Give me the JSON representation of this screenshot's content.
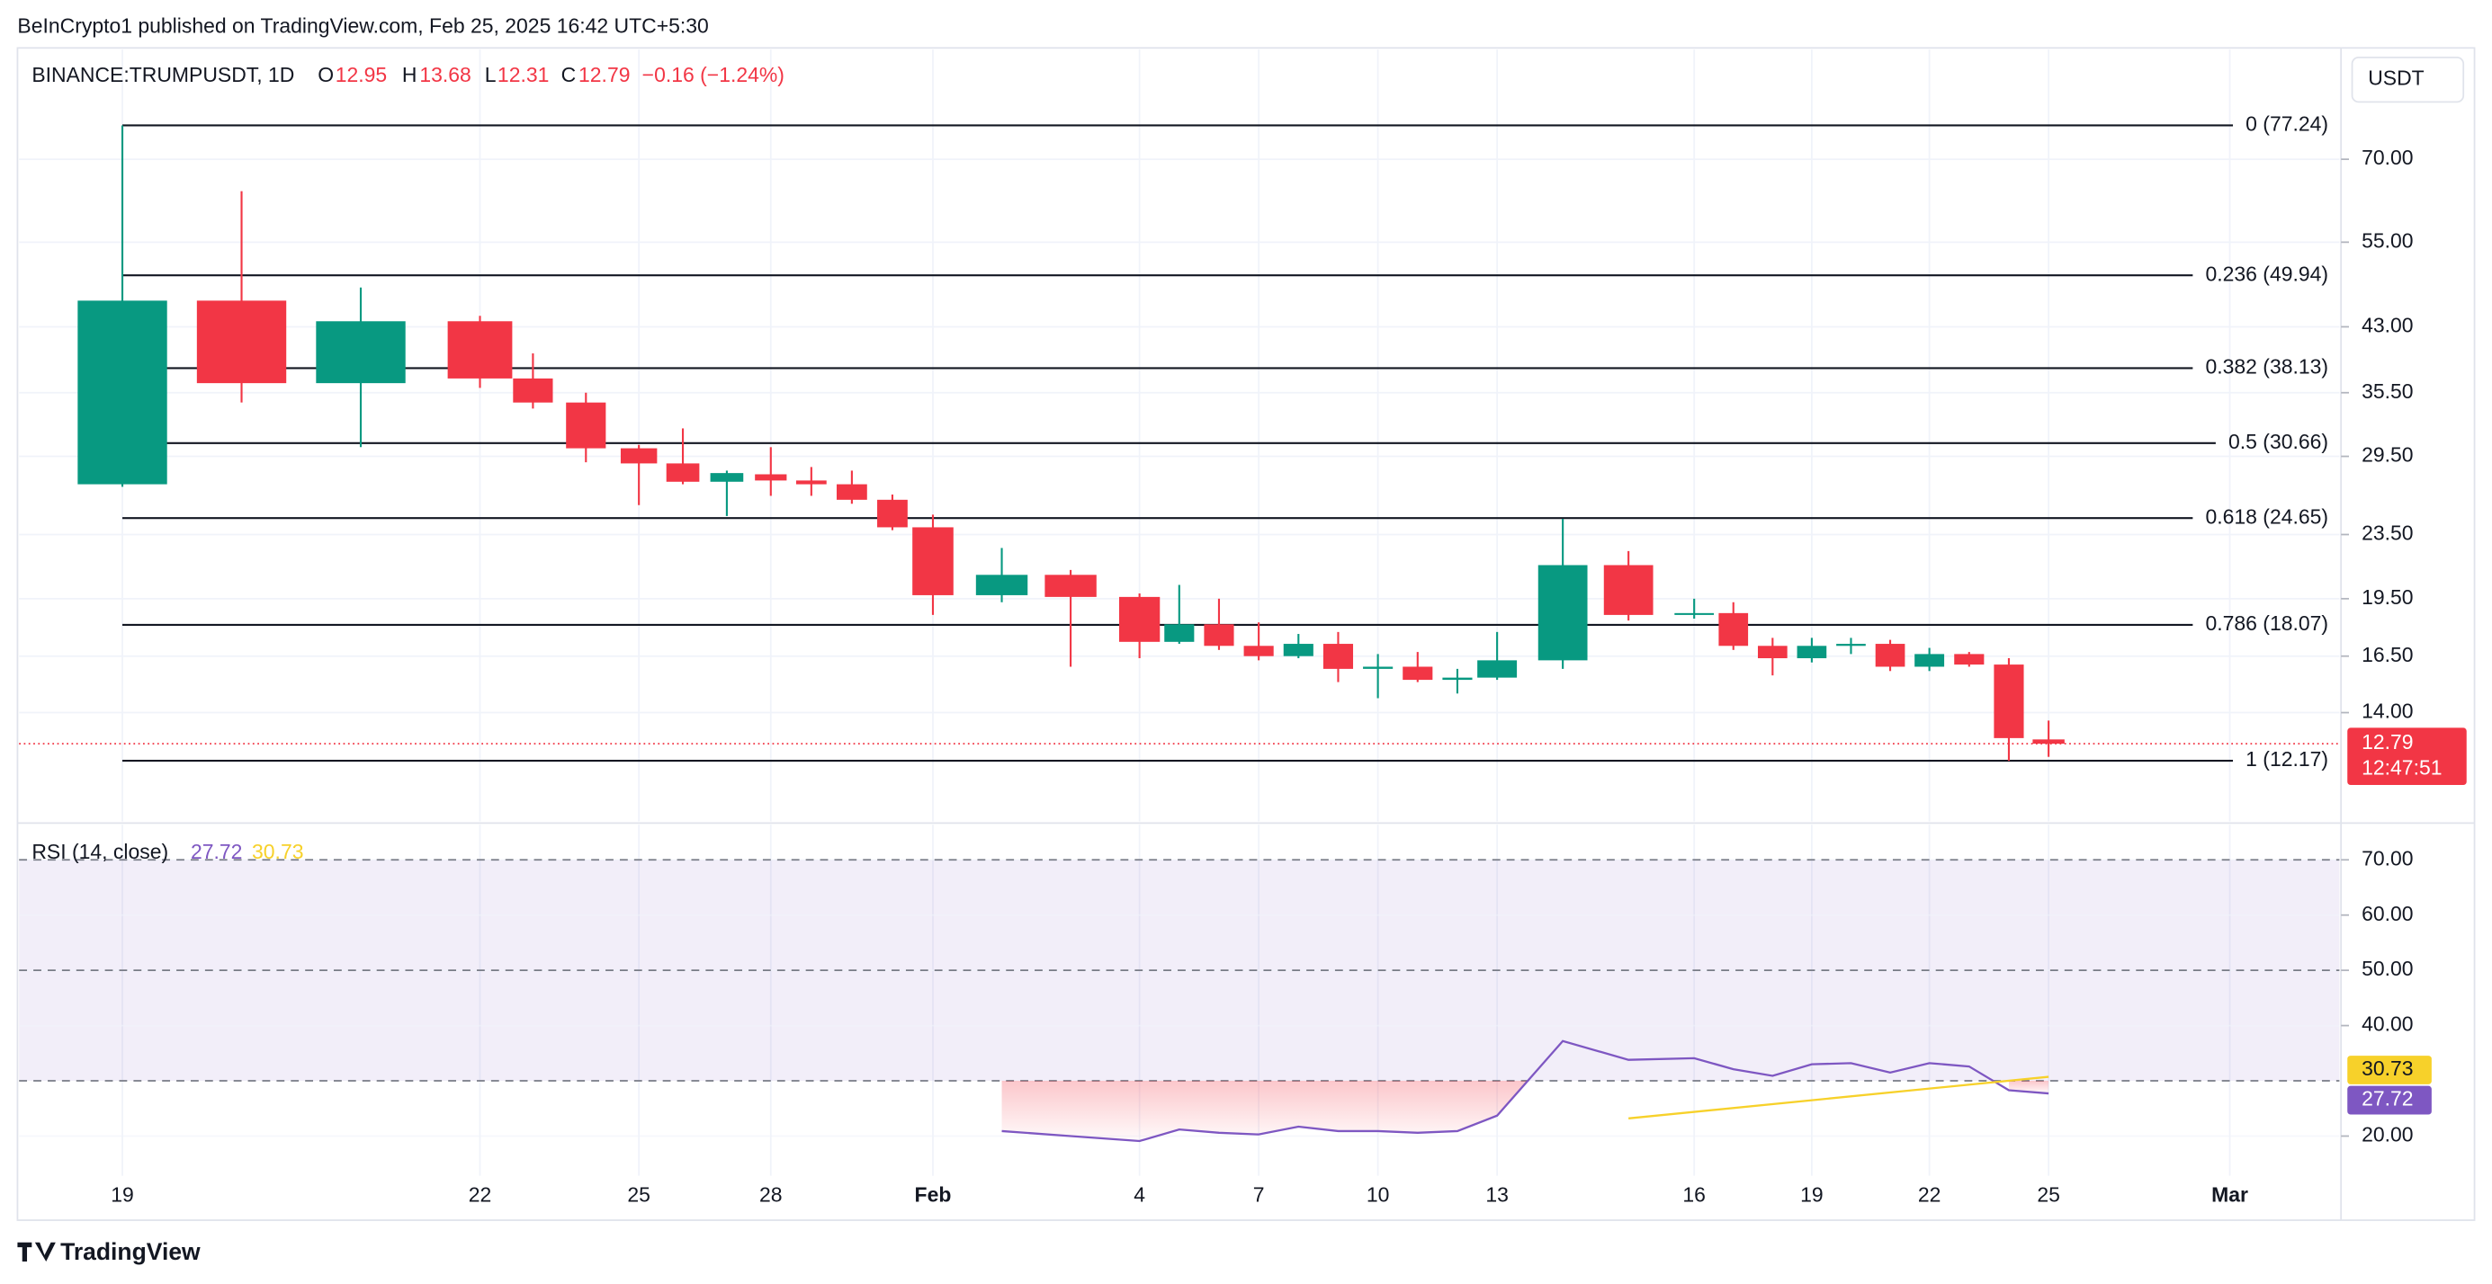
{
  "header": {
    "publisher": "BeInCrypto1 published on TradingView.com, Feb 25, 2025 16:42 UTC+5:30"
  },
  "footer": {
    "logo": "TradingView"
  },
  "chart_data": [
    {
      "type": "candlestick",
      "symbol": "BINANCE:TRUMPUSDT, 1D",
      "currency": "USDT",
      "ohlc_letters": [
        "O",
        "H",
        "L",
        "C"
      ],
      "change": "−0.16 (−1.24%)",
      "countdown": "12:47:51",
      "log_scale": true,
      "grid": true,
      "up_color": "#089981",
      "down_color": "#f23645",
      "x": [
        0,
        1,
        2,
        3,
        4,
        5,
        6,
        7,
        8,
        9,
        10,
        11,
        12,
        13,
        14,
        15,
        16,
        17,
        18,
        19,
        20,
        21,
        22,
        23,
        24,
        25,
        26,
        27,
        28,
        29,
        30,
        31,
        32,
        33,
        34,
        35,
        36,
        37
      ],
      "open": [
        27.2,
        46.4,
        36.5,
        43.7,
        37.0,
        34.5,
        30.2,
        28.9,
        27.4,
        28.0,
        27.5,
        27.2,
        26.0,
        24.0,
        19.7,
        20.9,
        19.6,
        17.2,
        18.1,
        17.0,
        16.5,
        17.1,
        15.9,
        16.0,
        15.4,
        15.5,
        16.3,
        21.5,
        18.6,
        18.7,
        17.0,
        16.4,
        17.0,
        17.1,
        16.0,
        16.6,
        16.1,
        12.95
      ],
      "high": [
        77.24,
        63.8,
        48.2,
        44.4,
        39.8,
        35.5,
        30.5,
        32.0,
        28.3,
        30.3,
        28.6,
        28.3,
        26.4,
        24.9,
        22.6,
        21.2,
        19.8,
        20.3,
        19.5,
        18.2,
        17.6,
        17.7,
        16.6,
        16.7,
        15.9,
        17.7,
        24.6,
        22.4,
        19.5,
        19.3,
        17.4,
        17.4,
        17.4,
        17.3,
        16.9,
        16.7,
        16.4,
        13.68
      ],
      "low": [
        27.0,
        34.5,
        30.3,
        36.0,
        33.9,
        29.0,
        25.6,
        27.2,
        24.8,
        26.3,
        26.3,
        25.7,
        23.8,
        18.6,
        19.3,
        16.0,
        16.4,
        17.1,
        16.8,
        16.3,
        16.4,
        15.3,
        14.6,
        15.3,
        14.8,
        15.4,
        15.9,
        18.3,
        18.4,
        16.8,
        15.6,
        16.2,
        16.6,
        15.8,
        15.8,
        16.0,
        12.17,
        12.31
      ],
      "close": [
        46.4,
        36.5,
        43.7,
        37.0,
        34.5,
        30.2,
        28.9,
        27.4,
        28.1,
        27.5,
        27.2,
        26.0,
        24.0,
        19.7,
        20.9,
        19.6,
        17.2,
        18.1,
        17.0,
        16.5,
        17.1,
        15.9,
        16.0,
        15.4,
        15.5,
        16.3,
        21.5,
        18.6,
        18.7,
        17.0,
        16.4,
        17.0,
        17.1,
        16.0,
        16.6,
        16.1,
        13.0,
        12.79
      ],
      "ylim": [
        10.2,
        92.4
      ],
      "yticks": [
        {
          "value": 14,
          "label": "14.00"
        },
        {
          "value": 16.5,
          "label": "16.50"
        },
        {
          "value": 19.5,
          "label": "19.50"
        },
        {
          "value": 23.5,
          "label": "23.50"
        },
        {
          "value": 29.5,
          "label": "29.50"
        },
        {
          "value": 35.5,
          "label": "35.50"
        },
        {
          "value": 43,
          "label": "43.00"
        },
        {
          "value": 55,
          "label": "55.00"
        },
        {
          "value": 70,
          "label": "70.00"
        }
      ],
      "xlim": [
        -0.88,
        43.46
      ],
      "xticks": [
        {
          "value": 0,
          "label": "19"
        },
        {
          "value": 3,
          "label": "22"
        },
        {
          "value": 6,
          "label": "25"
        },
        {
          "value": 9,
          "label": "28"
        },
        {
          "value": 13,
          "label": "Feb"
        },
        {
          "value": 16,
          "label": "4"
        },
        {
          "value": 19,
          "label": "7"
        },
        {
          "value": 22,
          "label": "10"
        },
        {
          "value": 25,
          "label": "13"
        },
        {
          "value": 28,
          "label": "16"
        },
        {
          "value": 31,
          "label": "19"
        },
        {
          "value": 34,
          "label": "22"
        },
        {
          "value": 37,
          "label": "25"
        },
        {
          "value": 41,
          "label": "Mar"
        }
      ],
      "fib_levels": [
        {
          "value": 77.24,
          "label": "0 (77.24)"
        },
        {
          "value": 49.94,
          "label": "0.236 (49.94)"
        },
        {
          "value": 38.13,
          "label": "0.382 (38.13)"
        },
        {
          "value": 30.66,
          "label": "0.5 (30.66)"
        },
        {
          "value": 24.65,
          "label": "0.618 (24.65)"
        },
        {
          "value": 18.07,
          "label": "0.786 (18.07)"
        },
        {
          "value": 12.17,
          "label": "1 (12.17)"
        }
      ]
    },
    {
      "type": "line",
      "title": "RSI (14, close)",
      "grid": true,
      "ylim": [
        13.4,
        75.5
      ],
      "yticks": [
        {
          "value": 20,
          "label": "20.00"
        },
        {
          "value": 40,
          "label": "40.00"
        },
        {
          "value": 50,
          "label": "50.00"
        },
        {
          "value": 60,
          "label": "60.00"
        },
        {
          "value": 70,
          "label": "70.00"
        }
      ],
      "band_lines": [
        30,
        50,
        70
      ],
      "band_color": "#7e57c2",
      "series": [
        {
          "color": "#7e57c2",
          "x": [
            14,
            15,
            16,
            17,
            18,
            19,
            20,
            21,
            22,
            23,
            24,
            25,
            26,
            27,
            28,
            29,
            30,
            31,
            32,
            33,
            34,
            35,
            36,
            37
          ],
          "values": [
            20.9,
            20.0,
            19.1,
            21.2,
            20.6,
            20.3,
            21.7,
            20.9,
            20.9,
            20.6,
            20.9,
            23.7,
            37.2,
            33.8,
            34.1,
            32.1,
            30.9,
            33.0,
            33.2,
            31.5,
            33.2,
            32.6,
            28.3,
            27.72
          ]
        },
        {
          "color": "#f7d12a",
          "x": [
            27,
            37
          ],
          "values": [
            23.2,
            30.73
          ]
        }
      ]
    }
  ]
}
